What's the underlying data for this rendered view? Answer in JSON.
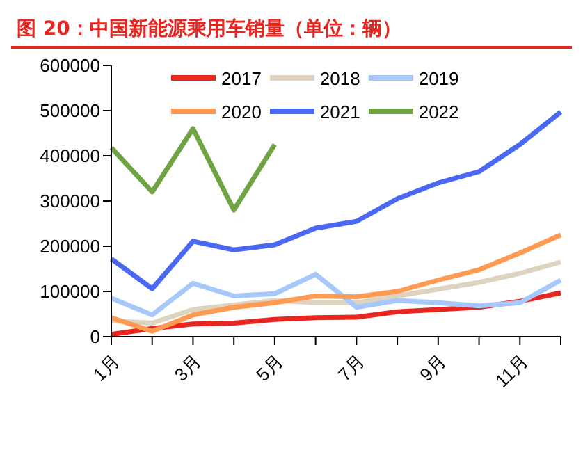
{
  "chart_data": {
    "type": "line",
    "title": "图 20：中国新能源乘用车销量（单位：辆）",
    "categories": [
      "1月",
      null,
      "3月",
      null,
      "5月",
      null,
      "7月",
      null,
      "9月",
      null,
      "11月",
      null
    ],
    "series": [
      {
        "name": "2017",
        "color": "#e8251f",
        "values": [
          5000,
          18000,
          28000,
          30000,
          38000,
          42000,
          43000,
          55000,
          60000,
          65000,
          78000,
          97000
        ]
      },
      {
        "name": "2018",
        "color": "#ddd3bf",
        "values": [
          35000,
          30000,
          60000,
          70000,
          80000,
          75000,
          75000,
          90000,
          105000,
          120000,
          140000,
          165000
        ]
      },
      {
        "name": "2019",
        "color": "#a6c8fb",
        "values": [
          85000,
          48000,
          118000,
          90000,
          95000,
          138000,
          65000,
          80000,
          75000,
          68000,
          75000,
          125000
        ]
      },
      {
        "name": "2020",
        "color": "#ff9a52",
        "values": [
          42000,
          12000,
          48000,
          65000,
          75000,
          90000,
          88000,
          100000,
          125000,
          148000,
          185000,
          225000
        ]
      },
      {
        "name": "2021",
        "color": "#4b68f5",
        "values": [
          172000,
          106000,
          211000,
          192000,
          203000,
          240000,
          255000,
          305000,
          340000,
          365000,
          425000,
          497000
        ]
      },
      {
        "name": "2022",
        "color": "#6ea444",
        "values": [
          418000,
          320000,
          460000,
          280000,
          425000,
          null,
          null,
          null,
          null,
          null,
          null,
          null
        ]
      }
    ],
    "ylim": [
      0,
      600000
    ],
    "yticks": [
      0,
      100000,
      200000,
      300000,
      400000,
      500000,
      600000
    ],
    "grid": false,
    "legend": "top",
    "marker": "none",
    "line_style": "solid"
  }
}
